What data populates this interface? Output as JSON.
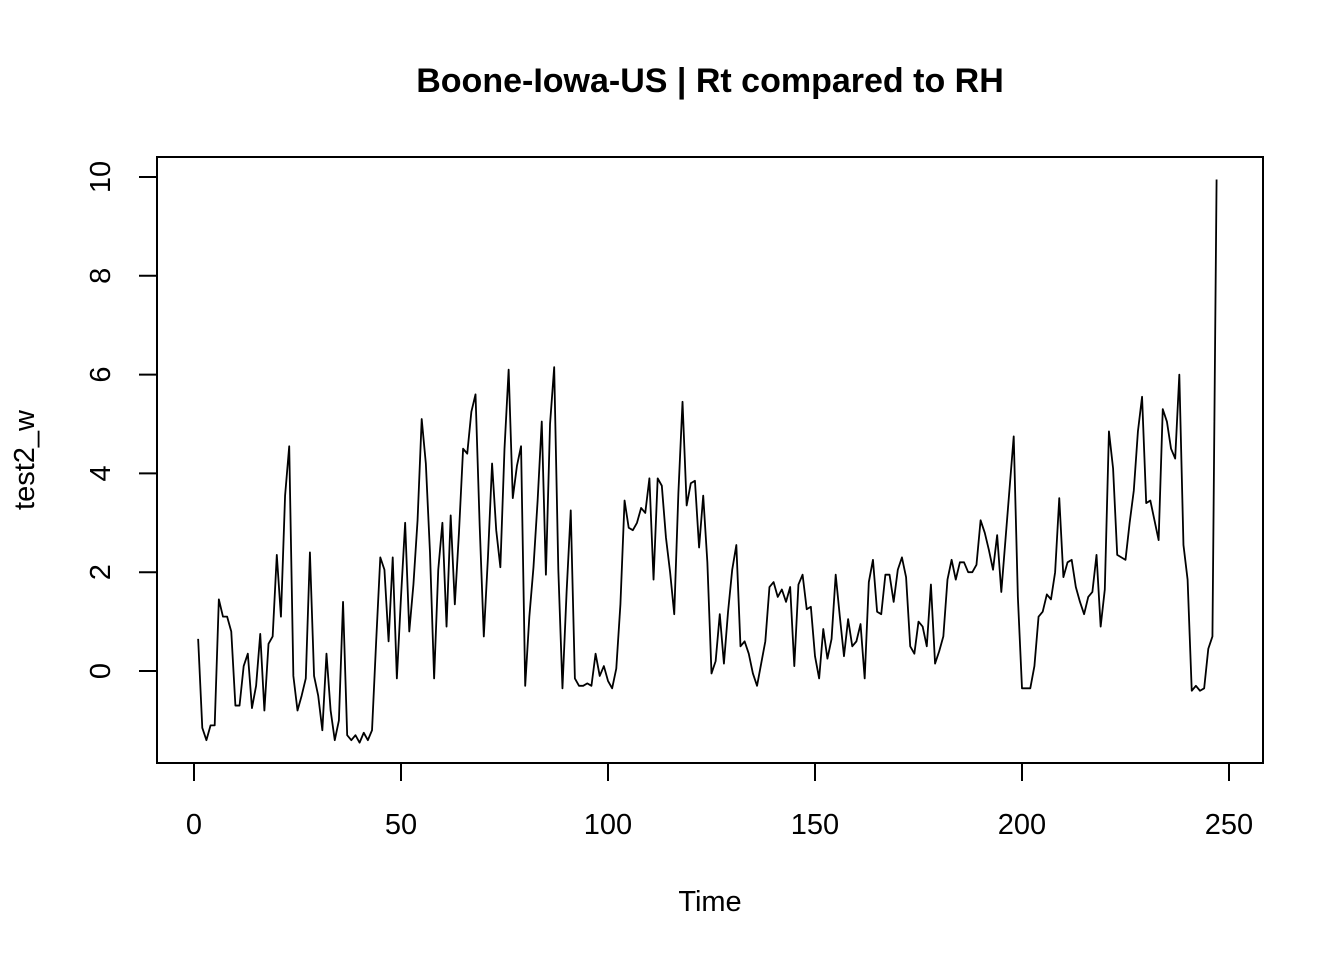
{
  "chart_data": {
    "type": "line",
    "title": "Boone-Iowa-US | Rt compared to RH",
    "xlabel": "Time",
    "ylabel": "test2_w",
    "xlim": [
      0,
      250
    ],
    "ylim": [
      -1.5,
      10
    ],
    "xticks": [
      0,
      50,
      100,
      150,
      200,
      250
    ],
    "yticks": [
      0,
      2,
      4,
      6,
      8,
      10
    ],
    "grid": false,
    "series": [
      {
        "x_start": 1,
        "values": [
          0.65,
          -1.15,
          -1.4,
          -1.1,
          -1.1,
          1.45,
          1.1,
          1.1,
          0.8,
          -0.7,
          -0.7,
          0.1,
          0.35,
          -0.75,
          -0.3,
          0.75,
          -0.8,
          0.55,
          0.7,
          2.35,
          1.1,
          3.55,
          4.55,
          -0.1,
          -0.8,
          -0.5,
          -0.15,
          2.4,
          -0.1,
          -0.5,
          -1.2,
          0.35,
          -0.8,
          -1.4,
          -1.0,
          1.4,
          -1.3,
          -1.4,
          -1.3,
          -1.45,
          -1.25,
          -1.4,
          -1.2,
          0.6,
          2.3,
          2.05,
          0.6,
          2.3,
          -0.15,
          1.5,
          3.0,
          0.8,
          1.75,
          3.05,
          5.1,
          4.2,
          2.4,
          -0.15,
          2.05,
          3.0,
          0.9,
          3.15,
          1.35,
          2.8,
          4.5,
          4.4,
          5.25,
          5.6,
          2.95,
          0.7,
          2.3,
          4.2,
          2.85,
          2.1,
          4.5,
          6.1,
          3.5,
          4.15,
          4.55,
          -0.3,
          1.1,
          2.1,
          3.45,
          5.05,
          1.95,
          5.0,
          6.15,
          2.05,
          -0.35,
          1.6,
          3.25,
          -0.15,
          -0.3,
          -0.3,
          -0.25,
          -0.3,
          0.35,
          -0.1,
          0.1,
          -0.2,
          -0.35,
          0.05,
          1.35,
          3.45,
          2.9,
          2.85,
          3.0,
          3.3,
          3.2,
          3.9,
          1.85,
          3.9,
          3.75,
          2.7,
          2.0,
          1.15,
          3.6,
          5.45,
          3.35,
          3.8,
          3.85,
          2.5,
          3.55,
          2.2,
          -0.05,
          0.2,
          1.15,
          0.15,
          1.2,
          2.05,
          2.55,
          0.5,
          0.6,
          0.35,
          -0.05,
          -0.3,
          0.15,
          0.6,
          1.7,
          1.8,
          1.5,
          1.65,
          1.4,
          1.7,
          0.1,
          1.75,
          1.95,
          1.25,
          1.3,
          0.3,
          -0.15,
          0.85,
          0.25,
          0.65,
          1.95,
          1.1,
          0.3,
          1.05,
          0.5,
          0.6,
          0.95,
          -0.15,
          1.8,
          2.25,
          1.2,
          1.15,
          1.95,
          1.95,
          1.4,
          2.05,
          2.3,
          1.9,
          0.5,
          0.35,
          1.0,
          0.9,
          0.5,
          1.75,
          0.15,
          0.4,
          0.7,
          1.85,
          2.25,
          1.85,
          2.2,
          2.2,
          2.0,
          2.0,
          2.15,
          3.05,
          2.8,
          2.45,
          2.05,
          2.75,
          1.6,
          2.65,
          3.7,
          4.75,
          1.5,
          -0.35,
          -0.35,
          -0.35,
          0.1,
          1.1,
          1.2,
          1.55,
          1.45,
          2.0,
          3.5,
          1.9,
          2.2,
          2.25,
          1.7,
          1.4,
          1.15,
          1.5,
          1.6,
          2.35,
          0.9,
          1.65,
          4.85,
          4.1,
          2.35,
          2.3,
          2.25,
          3.0,
          3.65,
          4.85,
          5.55,
          3.4,
          3.45,
          3.05,
          2.65,
          5.3,
          5.05,
          4.5,
          4.3,
          6.0,
          2.55,
          1.85,
          -0.4,
          -0.3,
          -0.4,
          -0.35,
          0.45,
          0.7,
          9.95
        ]
      }
    ]
  }
}
